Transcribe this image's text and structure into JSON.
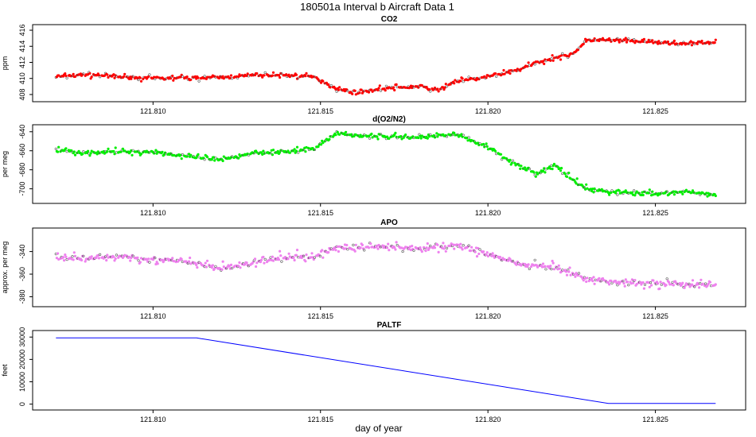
{
  "figure": {
    "title": "180501a   Interval b Aircraft Data 1",
    "xlabel": "day of year",
    "xticks": [
      "121.810",
      "121.815",
      "121.820",
      "121.825"
    ]
  },
  "chart_data": [
    {
      "type": "scatter",
      "title": "CO2",
      "ylabel": "ppm",
      "color": "#ff0000",
      "xlim": [
        121.8065,
        121.8276
      ],
      "ylim": [
        407.5,
        416.3
      ],
      "xticks": [
        121.81,
        121.815,
        121.82,
        121.825
      ],
      "yticks": [
        408,
        410,
        412,
        414,
        416
      ],
      "series": [
        {
          "x": [
            121.8071,
            121.808,
            121.809,
            121.81,
            121.811,
            121.812,
            121.813,
            121.814,
            121.8148,
            121.8155,
            121.816,
            121.817,
            121.818,
            121.8185,
            121.819,
            121.82,
            121.821,
            121.8215,
            121.822,
            121.8225,
            121.823,
            121.824,
            121.825,
            121.826,
            121.8268
          ],
          "y": [
            410.2,
            410.5,
            410.2,
            410.0,
            410.1,
            410.1,
            410.4,
            410.4,
            410.2,
            408.7,
            408.2,
            408.8,
            409.0,
            408.5,
            409.6,
            410.2,
            411.2,
            412.0,
            412.6,
            413.0,
            414.8,
            414.7,
            414.5,
            414.3,
            414.5
          ]
        }
      ]
    },
    {
      "type": "scatter",
      "title": "d(O2/N2)",
      "ylabel": "per meg",
      "color": "#00ee00",
      "xlim": [
        121.8065,
        121.8276
      ],
      "ylim": [
        -712,
        -636
      ],
      "xticks": [
        121.81,
        121.815,
        121.82,
        121.825
      ],
      "yticks": [
        -640,
        -660,
        -680,
        -700
      ],
      "series": [
        {
          "x": [
            121.8071,
            121.808,
            121.809,
            121.81,
            121.811,
            121.812,
            121.813,
            121.814,
            121.8148,
            121.8155,
            121.816,
            121.817,
            121.818,
            121.819,
            121.82,
            121.821,
            121.8215,
            121.822,
            121.8225,
            121.823,
            121.824,
            121.825,
            121.826,
            121.8268
          ],
          "y": [
            -659,
            -662,
            -661,
            -661,
            -666,
            -670,
            -662,
            -661,
            -658,
            -641,
            -644,
            -645,
            -646,
            -642,
            -656,
            -678,
            -684,
            -675,
            -690,
            -701,
            -704,
            -705,
            -703,
            -707
          ]
        }
      ]
    },
    {
      "type": "scatter",
      "title": "APO",
      "ylabel": "approx. per meg",
      "color": "#ee82ee",
      "xlim": [
        121.8065,
        121.8276
      ],
      "ylim": [
        -386,
        -322
      ],
      "xticks": [
        121.81,
        121.815,
        121.82,
        121.825
      ],
      "yticks": [
        -340,
        -360,
        -380
      ],
      "series": [
        {
          "x": [
            121.8071,
            121.808,
            121.809,
            121.81,
            121.811,
            121.812,
            121.813,
            121.814,
            121.8148,
            121.8155,
            121.816,
            121.817,
            121.818,
            121.819,
            121.82,
            121.821,
            121.822,
            121.823,
            121.824,
            121.825,
            121.826,
            121.8268
          ],
          "y": [
            -344,
            -347,
            -344,
            -347,
            -349,
            -355,
            -350,
            -345,
            -345,
            -336,
            -337,
            -335,
            -338,
            -334,
            -342,
            -352,
            -354,
            -365,
            -367,
            -368,
            -369,
            -370
          ]
        }
      ]
    },
    {
      "type": "line",
      "title": "PALTF",
      "ylabel": "feet",
      "color": "#0000ff",
      "xlim": [
        121.8065,
        121.8276
      ],
      "ylim": [
        -1200,
        31500
      ],
      "xticks": [
        121.81,
        121.815,
        121.82,
        121.825
      ],
      "yticks": [
        0,
        10000,
        20000,
        30000
      ],
      "series": [
        {
          "x": [
            121.8071,
            121.8113,
            121.8236,
            121.8268
          ],
          "y": [
            29600,
            29600,
            300,
            300
          ]
        }
      ]
    }
  ]
}
